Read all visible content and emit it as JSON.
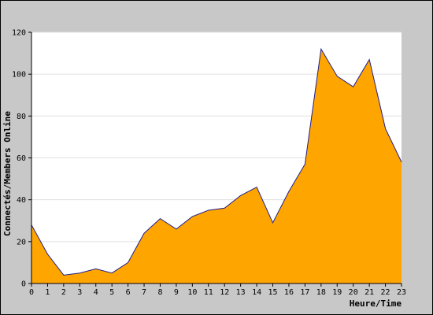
{
  "chart_data": {
    "type": "area",
    "title": "",
    "xlabel": "Heure/Time",
    "ylabel": "Connectés/Members Online",
    "x": [
      0,
      1,
      2,
      3,
      4,
      5,
      6,
      7,
      8,
      9,
      10,
      11,
      12,
      13,
      14,
      15,
      16,
      17,
      18,
      19,
      20,
      21,
      22,
      23
    ],
    "series": [
      {
        "values": [
          28,
          14,
          4,
          5,
          7,
          5,
          10,
          24,
          31,
          26,
          32,
          35,
          36,
          42,
          46,
          29,
          44,
          57,
          112,
          99,
          94,
          107,
          74,
          58
        ]
      }
    ],
    "xlim": [
      0,
      23
    ],
    "ylim": [
      0,
      120
    ],
    "yticks": [
      0,
      20,
      40,
      60,
      80,
      100,
      120
    ],
    "grid": "horizontal",
    "colors": {
      "fill": "#ffa500",
      "line": "#1f1f8f",
      "plot_background": "#ffffff",
      "frame_background": "#c8c8c8",
      "grid": "#e0e0e0"
    }
  }
}
